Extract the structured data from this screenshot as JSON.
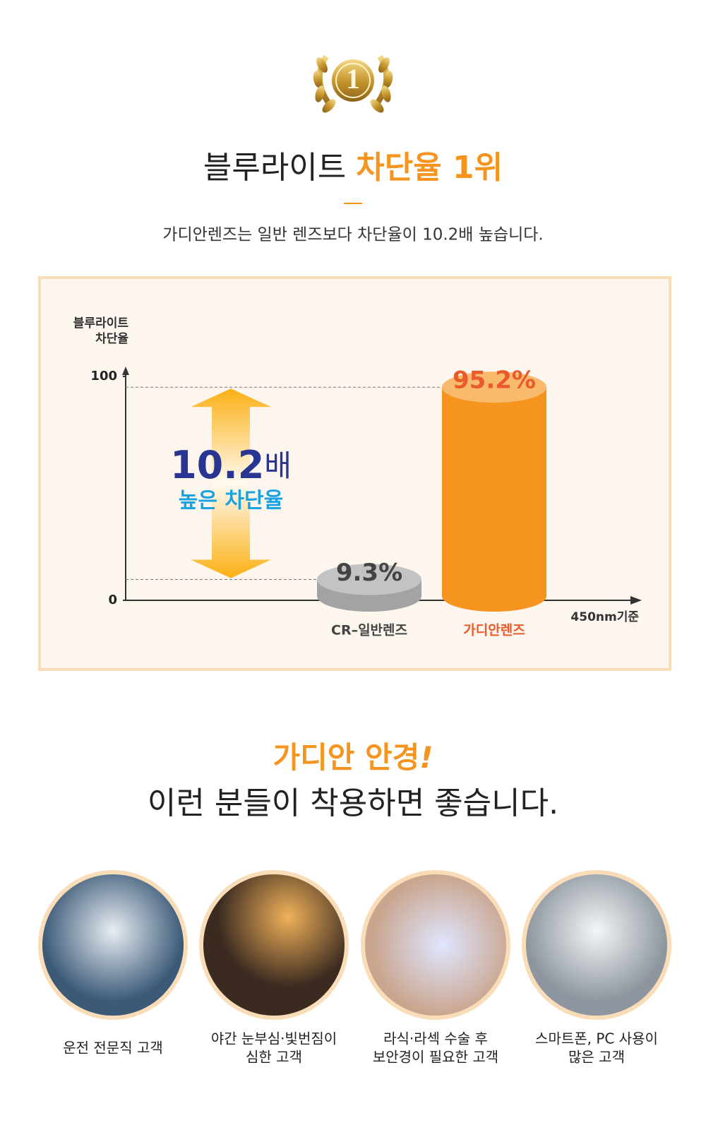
{
  "header": {
    "title": "블루라이트",
    "title_highlight": "차단율 1위",
    "subtitle": "가디안렌즈는 일반 렌즈보다 차단율이 10.2배 높습니다."
  },
  "chart_data": {
    "type": "bar",
    "ylabel": [
      "블루라이트",
      "차단율"
    ],
    "xlabel": "450nm기준",
    "categories": [
      "CR–일반렌즈",
      "가디안렌즈"
    ],
    "values": [
      9.3,
      95.2
    ],
    "value_labels": [
      "9.3%",
      "95.2%"
    ],
    "colors": [
      "#a3a3a3",
      "#f5951f"
    ],
    "label_colors": [
      "#444444",
      "#ea5a2b"
    ],
    "ylim": [
      0,
      100
    ],
    "yticks": [
      0,
      100
    ],
    "grid": false,
    "annotation": {
      "value": "10.2",
      "unit": "배",
      "text": "높은 차단율"
    }
  },
  "section": {
    "title": "가디안 안경",
    "title_mark": "!",
    "heading": "이런 분들이 착용하면 좋습니다."
  },
  "audience": [
    {
      "label": [
        "운전 전문직 고객"
      ]
    },
    {
      "label": [
        "야간 눈부심·빛번짐이",
        "심한 고객"
      ]
    },
    {
      "label": [
        "라식·라섹 수술 후",
        "보안경이 필요한 고객"
      ]
    },
    {
      "label": [
        "스마트폰, PC 사용이",
        "많은 고객"
      ]
    }
  ]
}
